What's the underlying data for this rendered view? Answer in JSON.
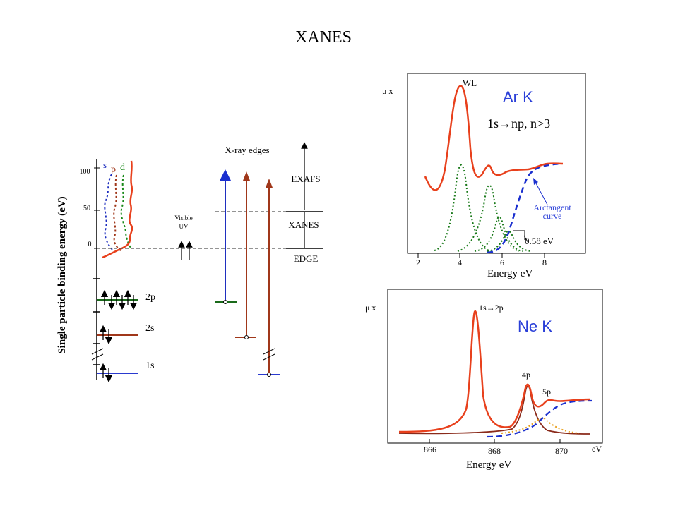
{
  "title": "XANES",
  "level_diagram": {
    "ylabel": "Single particle binding energy (eV)",
    "ticks": [
      "100",
      "50",
      "0"
    ],
    "legend": {
      "s": "s",
      "p": "p",
      "d": "d"
    },
    "levels": {
      "2p": "2p",
      "2s": "2s",
      "1s": "1s"
    },
    "visible_uv": [
      "Visible",
      "UV"
    ],
    "xray_edges": "X-ray  edges",
    "regions": {
      "exafs": "EXAFS",
      "xanes": "XANES",
      "edge": "EDGE"
    },
    "colors": {
      "s": "#1f2fbf",
      "p": "#a0371a",
      "d": "#1a8a1a",
      "total": "#e8401c"
    }
  },
  "ar_panel": {
    "ylabel": "μ x",
    "wl_label": "WL",
    "element": "Ar  K",
    "transition": "1s→np, n>3",
    "arctangent_label": [
      "Arctangent",
      "curve"
    ],
    "shift_label": "0.58 eV",
    "xlabel": "Energy  eV",
    "xticks": [
      "2",
      "4",
      "6",
      "8"
    ]
  },
  "ne_panel": {
    "ylabel": "μ x",
    "transition": "1s→2p",
    "element": "Ne  K",
    "peak_4p": "4p",
    "peak_5p": "5p",
    "xlabel": "Energy  eV",
    "xticks": [
      "866",
      "868",
      "870"
    ],
    "unit": "eV"
  },
  "accent_colors": {
    "main": "#e8401c",
    "fit": "#1a7a1a",
    "arctan": "#1a2fcf",
    "element": "#2a3fd8"
  }
}
